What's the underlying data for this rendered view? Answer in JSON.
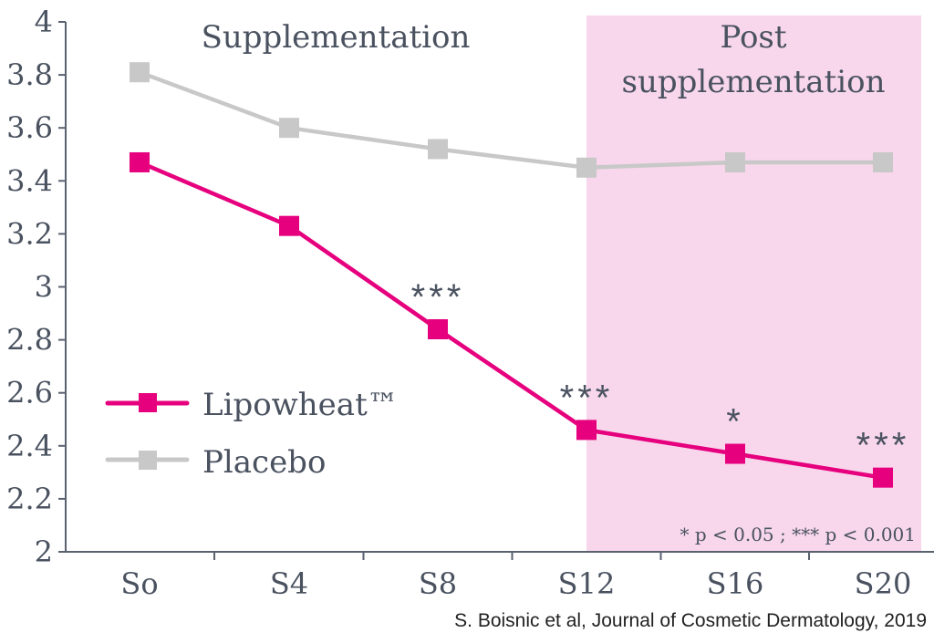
{
  "chart_data": {
    "type": "line",
    "title": "",
    "xlabel": "",
    "ylabel": "",
    "categories": [
      "So",
      "S4",
      "S8",
      "S12",
      "S16",
      "S20"
    ],
    "ylim": [
      2,
      4
    ],
    "yticks": [
      "2",
      "2.2",
      "2.4",
      "2.6",
      "2.8",
      "3",
      "3.2",
      "3.4",
      "3.6",
      "3.8",
      "4"
    ],
    "ytick_values": [
      2,
      2.2,
      2.4,
      2.6,
      2.8,
      3,
      3.2,
      3.4,
      3.6,
      3.8,
      4
    ],
    "grid": false,
    "legend_position": "center-left",
    "series": [
      {
        "name": "Lipowheat™",
        "color": "#e6007e",
        "values": [
          3.47,
          3.23,
          2.84,
          2.46,
          2.37,
          2.28
        ]
      },
      {
        "name": "Placebo",
        "color": "#c8c8c8",
        "values": [
          3.81,
          3.6,
          3.52,
          3.45,
          3.47,
          3.47
        ]
      }
    ],
    "significance": [
      "",
      "",
      "***",
      "***",
      "*",
      "***"
    ],
    "regions": [
      {
        "label_lines": [
          "Supplementation"
        ],
        "from": "So",
        "to": "S12",
        "shaded": false
      },
      {
        "label_lines": [
          "Post",
          "supplementation"
        ],
        "from": "S12",
        "to": "S20",
        "shaded": true,
        "color": "#f8d7ec"
      }
    ],
    "footnote": "* p < 0.05 ; *** p < 0.001",
    "source": "S. Boisnic et al, Journal of Cosmetic Dermatology, 2019"
  },
  "colors": {
    "axis": "#5a6270",
    "text": "#4a5260",
    "source_text": "#222222"
  }
}
